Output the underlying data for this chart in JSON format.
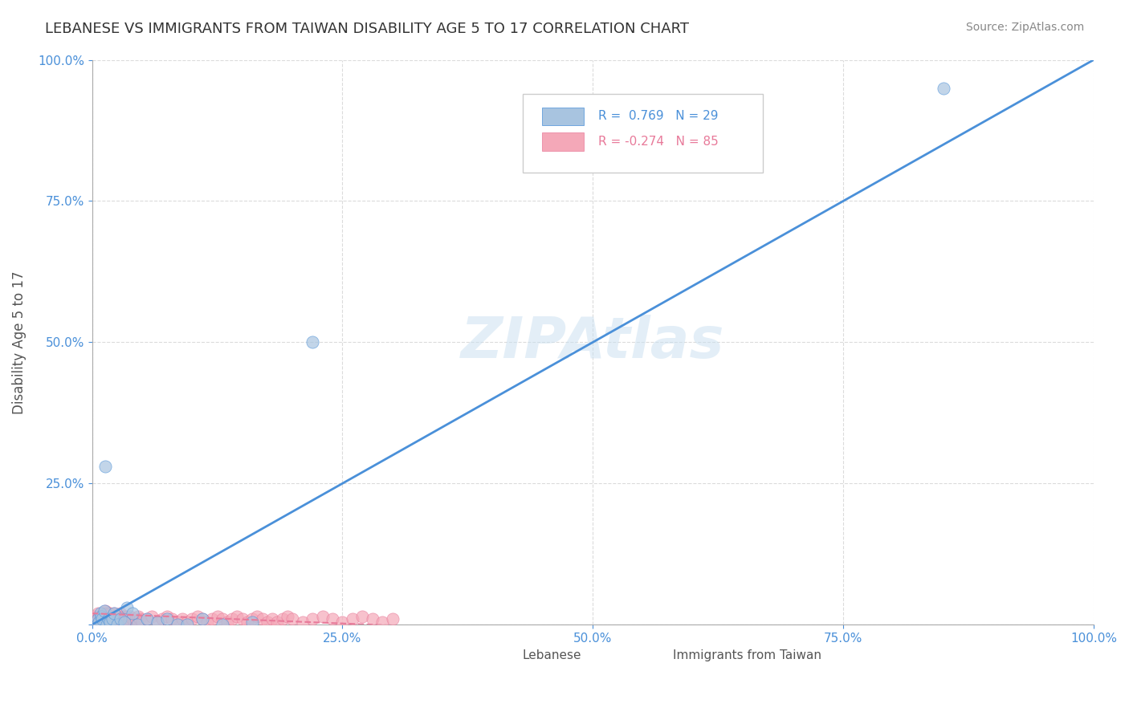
{
  "title": "LEBANESE VS IMMIGRANTS FROM TAIWAN DISABILITY AGE 5 TO 17 CORRELATION CHART",
  "source": "Source: ZipAtlas.com",
  "xlabel": "",
  "ylabel": "Disability Age 5 to 17",
  "xlim": [
    0,
    1.0
  ],
  "ylim": [
    0,
    1.0
  ],
  "xticks": [
    0.0,
    0.25,
    0.5,
    0.75,
    1.0
  ],
  "xtick_labels": [
    "0.0%",
    "25.0%",
    "50.0%",
    "75.0%",
    "100.0%"
  ],
  "yticks": [
    0.0,
    0.25,
    0.5,
    0.75,
    1.0
  ],
  "ytick_labels": [
    "",
    "25.0%",
    "50.0%",
    "75.0%",
    "100.0%"
  ],
  "watermark": "ZIPAtlas",
  "legend_r1": "R =  0.769",
  "legend_n1": "N = 29",
  "legend_r2": "R = -0.274",
  "legend_n2": "N = 85",
  "blue_color": "#a8c4e0",
  "pink_color": "#f4a8b8",
  "line_blue": "#4a90d9",
  "line_pink": "#e87a9a",
  "background_color": "#ffffff",
  "grid_color": "#cccccc",
  "title_color": "#333333",
  "lebanese_x": [
    0.005,
    0.006,
    0.007,
    0.008,
    0.009,
    0.01,
    0.012,
    0.013,
    0.015,
    0.016,
    0.018,
    0.02,
    0.022,
    0.025,
    0.028,
    0.032,
    0.035,
    0.04,
    0.045,
    0.055,
    0.065,
    0.075,
    0.085,
    0.095,
    0.11,
    0.13,
    0.16,
    0.22,
    0.85
  ],
  "lebanese_y": [
    0.0,
    0.01,
    0.005,
    0.02,
    0.015,
    0.01,
    0.025,
    0.28,
    0.0,
    0.01,
    0.005,
    0.01,
    0.02,
    0.0,
    0.01,
    0.005,
    0.03,
    0.02,
    0.0,
    0.01,
    0.005,
    0.01,
    0.0,
    0.0,
    0.01,
    0.0,
    0.005,
    0.5,
    0.95
  ],
  "taiwan_x": [
    0.0,
    0.001,
    0.002,
    0.003,
    0.004,
    0.005,
    0.006,
    0.007,
    0.008,
    0.009,
    0.01,
    0.011,
    0.012,
    0.013,
    0.014,
    0.015,
    0.016,
    0.017,
    0.018,
    0.019,
    0.02,
    0.021,
    0.022,
    0.023,
    0.024,
    0.025,
    0.026,
    0.027,
    0.028,
    0.029,
    0.03,
    0.031,
    0.032,
    0.033,
    0.034,
    0.035,
    0.036,
    0.037,
    0.038,
    0.04,
    0.042,
    0.044,
    0.046,
    0.048,
    0.05,
    0.055,
    0.06,
    0.065,
    0.07,
    0.075,
    0.08,
    0.085,
    0.09,
    0.095,
    0.1,
    0.105,
    0.11,
    0.115,
    0.12,
    0.125,
    0.13,
    0.135,
    0.14,
    0.145,
    0.15,
    0.155,
    0.16,
    0.165,
    0.17,
    0.175,
    0.18,
    0.185,
    0.19,
    0.195,
    0.2,
    0.21,
    0.22,
    0.23,
    0.24,
    0.25,
    0.26,
    0.27,
    0.28,
    0.29,
    0.3
  ],
  "taiwan_y": [
    0.0,
    0.005,
    0.01,
    0.015,
    0.005,
    0.01,
    0.02,
    0.015,
    0.01,
    0.005,
    0.015,
    0.02,
    0.01,
    0.025,
    0.015,
    0.02,
    0.01,
    0.015,
    0.02,
    0.01,
    0.005,
    0.015,
    0.02,
    0.01,
    0.015,
    0.005,
    0.01,
    0.015,
    0.02,
    0.01,
    0.005,
    0.015,
    0.01,
    0.005,
    0.015,
    0.01,
    0.005,
    0.01,
    0.015,
    0.01,
    0.005,
    0.01,
    0.015,
    0.01,
    0.005,
    0.01,
    0.015,
    0.005,
    0.01,
    0.015,
    0.01,
    0.005,
    0.01,
    0.005,
    0.01,
    0.015,
    0.01,
    0.005,
    0.01,
    0.015,
    0.01,
    0.005,
    0.01,
    0.015,
    0.01,
    0.005,
    0.01,
    0.015,
    0.01,
    0.005,
    0.01,
    0.005,
    0.01,
    0.015,
    0.01,
    0.005,
    0.01,
    0.015,
    0.01,
    0.005,
    0.01,
    0.015,
    0.01,
    0.005,
    0.01
  ]
}
